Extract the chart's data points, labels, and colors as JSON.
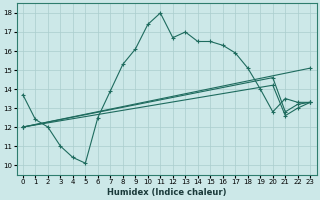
{
  "title": "",
  "xlabel": "Humidex (Indice chaleur)",
  "xlim": [
    -0.5,
    23.5
  ],
  "ylim": [
    9.5,
    18.5
  ],
  "xticks": [
    0,
    1,
    2,
    3,
    4,
    5,
    6,
    7,
    8,
    9,
    10,
    11,
    12,
    13,
    14,
    15,
    16,
    17,
    18,
    19,
    20,
    21,
    22,
    23
  ],
  "yticks": [
    10,
    11,
    12,
    13,
    14,
    15,
    16,
    17,
    18
  ],
  "line_color": "#1e6b5e",
  "bg_color": "#cce8e8",
  "grid_color": "#aacece",
  "series": [
    {
      "x": [
        0,
        1,
        2,
        3,
        4,
        5,
        6,
        7,
        8,
        9,
        10,
        11,
        12,
        13,
        14,
        15,
        16,
        17,
        18,
        19,
        20,
        21,
        22,
        23
      ],
      "y": [
        13.7,
        12.4,
        12.0,
        11.0,
        10.4,
        10.1,
        12.5,
        13.9,
        15.3,
        16.1,
        17.4,
        18.0,
        16.7,
        17.0,
        16.5,
        16.5,
        16.3,
        15.9,
        15.1,
        14.0,
        12.8,
        13.5,
        13.3,
        13.3
      ]
    },
    {
      "x": [
        0,
        23
      ],
      "y": [
        12.0,
        15.1
      ]
    },
    {
      "x": [
        0,
        20,
        21,
        22,
        23
      ],
      "y": [
        12.0,
        14.6,
        12.8,
        13.2,
        13.3
      ]
    },
    {
      "x": [
        0,
        20,
        21,
        22,
        23
      ],
      "y": [
        12.0,
        14.2,
        12.6,
        13.0,
        13.3
      ]
    }
  ]
}
